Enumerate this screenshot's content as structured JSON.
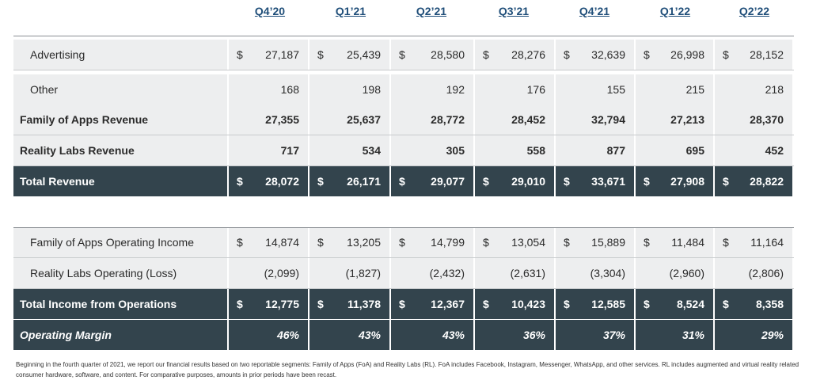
{
  "quarters": [
    "Q4’20",
    "Q1’21",
    "Q2’21",
    "Q3’21",
    "Q4’21",
    "Q1’22",
    "Q2’22"
  ],
  "rows": [
    {
      "label": "Advertising",
      "currency": "$",
      "values": [
        "27,187",
        "25,439",
        "28,580",
        "28,276",
        "32,639",
        "26,998",
        "28,152"
      ]
    },
    {
      "label": "Other",
      "currency": "",
      "values": [
        "168",
        "198",
        "192",
        "176",
        "155",
        "215",
        "218"
      ]
    },
    {
      "label": "Family of Apps Revenue",
      "currency": "",
      "values": [
        "27,355",
        "25,637",
        "28,772",
        "28,452",
        "32,794",
        "27,213",
        "28,370"
      ]
    },
    {
      "label": "Reality Labs Revenue",
      "currency": "",
      "values": [
        "717",
        "534",
        "305",
        "558",
        "877",
        "695",
        "452"
      ]
    },
    {
      "label": "Total Revenue",
      "currency": "$",
      "values": [
        "28,072",
        "26,171",
        "29,077",
        "29,010",
        "33,671",
        "27,908",
        "28,822"
      ]
    },
    {
      "label": "Family of Apps Operating Income",
      "currency": "$",
      "values": [
        "14,874",
        "13,205",
        "14,799",
        "13,054",
        "15,889",
        "11,484",
        "11,164"
      ]
    },
    {
      "label": "Reality Labs Operating (Loss)",
      "currency": "",
      "values": [
        "(2,099)",
        "(1,827)",
        "(2,432)",
        "(2,631)",
        "(3,304)",
        "(2,960)",
        "(2,806)"
      ]
    },
    {
      "label": "Total Income from Operations",
      "currency": "$",
      "values": [
        "12,775",
        "11,378",
        "12,367",
        "10,423",
        "12,585",
        "8,524",
        "8,358"
      ]
    },
    {
      "label": "Operating Margin",
      "currency": "",
      "values": [
        "46%",
        "43%",
        "43%",
        "36%",
        "37%",
        "31%",
        "29%"
      ]
    }
  ],
  "footnote": "Beginning in the fourth quarter of 2021, we report our financial results based on two reportable segments: Family of Apps (FoA) and Reality Labs (RL). FoA includes Facebook, Instagram, Messenger, WhatsApp, and other services. RL includes augmented and virtual reality related consumer hardware, software, and content. For comparative purposes, amounts in prior periods have been recast."
}
